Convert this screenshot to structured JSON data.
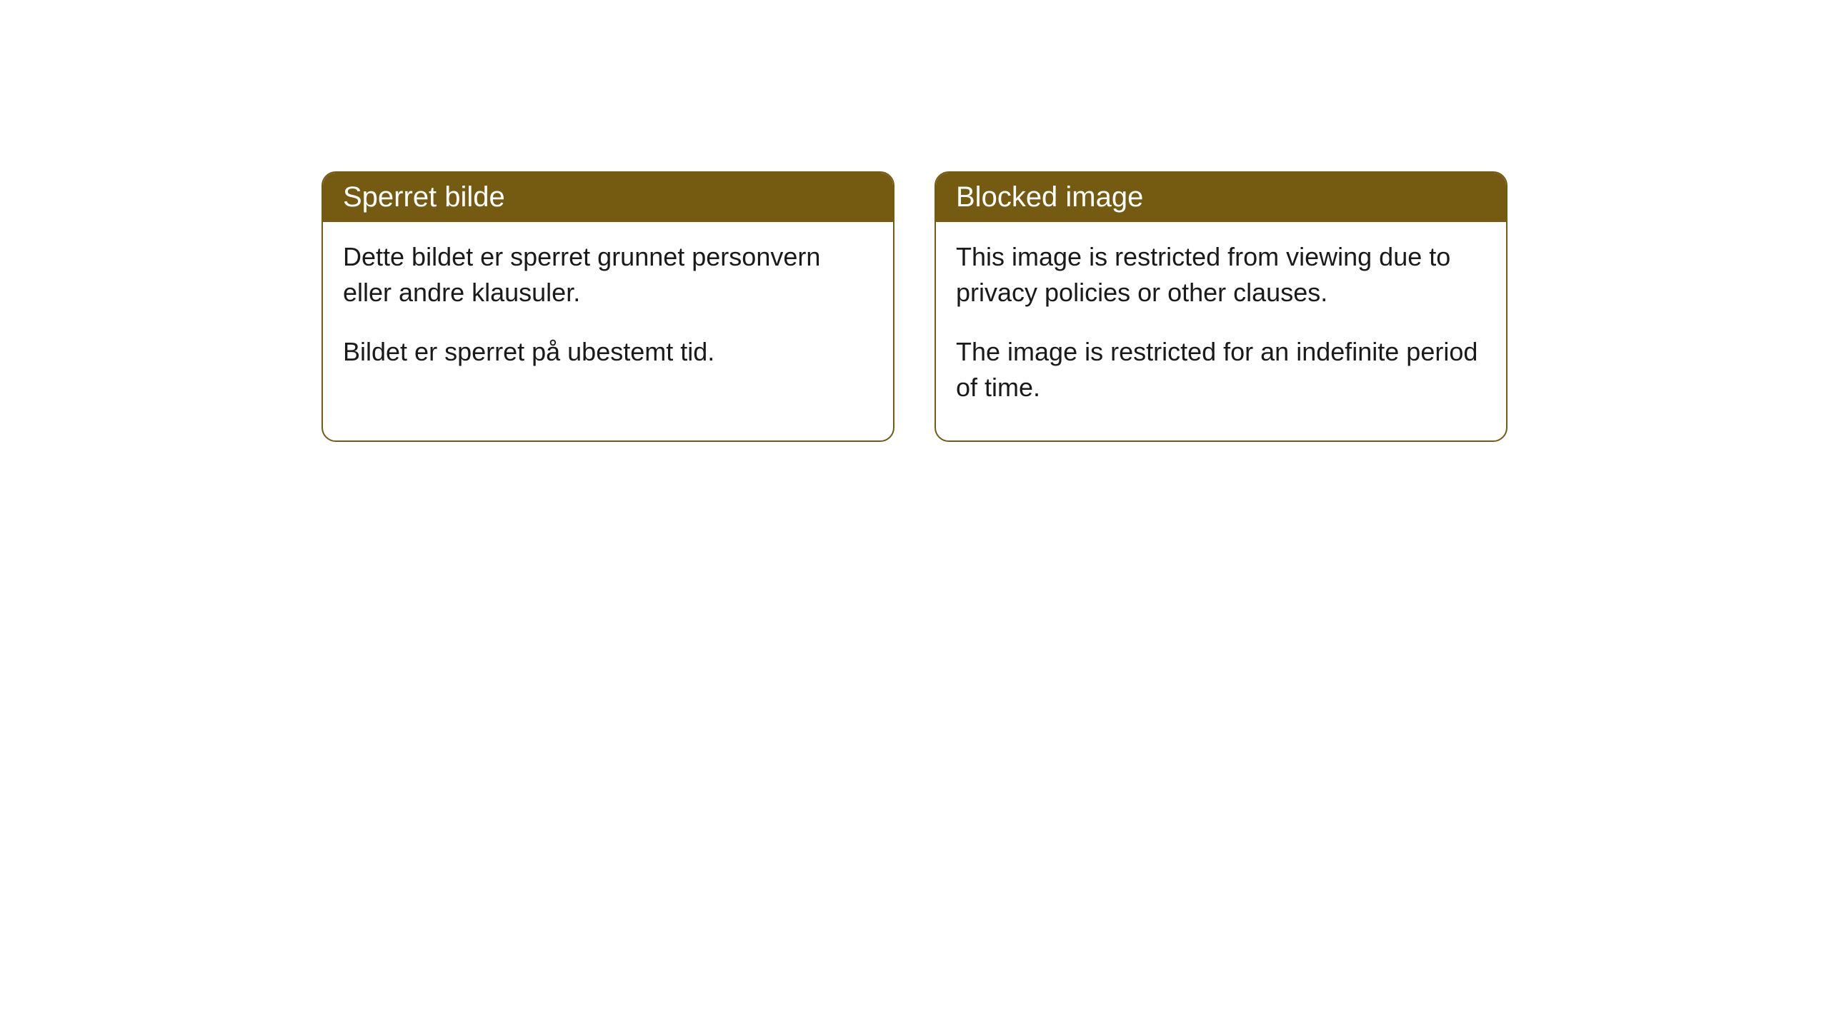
{
  "cards": [
    {
      "title": "Sperret bilde",
      "paragraph1": "Dette bildet er sperret grunnet personvern eller andre klausuler.",
      "paragraph2": "Bildet er sperret på ubestemt tid."
    },
    {
      "title": "Blocked image",
      "paragraph1": "This image is restricted from viewing due to privacy policies or other clauses.",
      "paragraph2": "The image is restricted for an indefinite period of time."
    }
  ],
  "styling": {
    "header_background": "#755a12",
    "header_text_color": "#ffffff",
    "border_color": "#755a12",
    "body_background": "#ffffff",
    "body_text_color": "#1a1a1a",
    "border_radius": 20,
    "title_fontsize": 40,
    "body_fontsize": 36
  }
}
